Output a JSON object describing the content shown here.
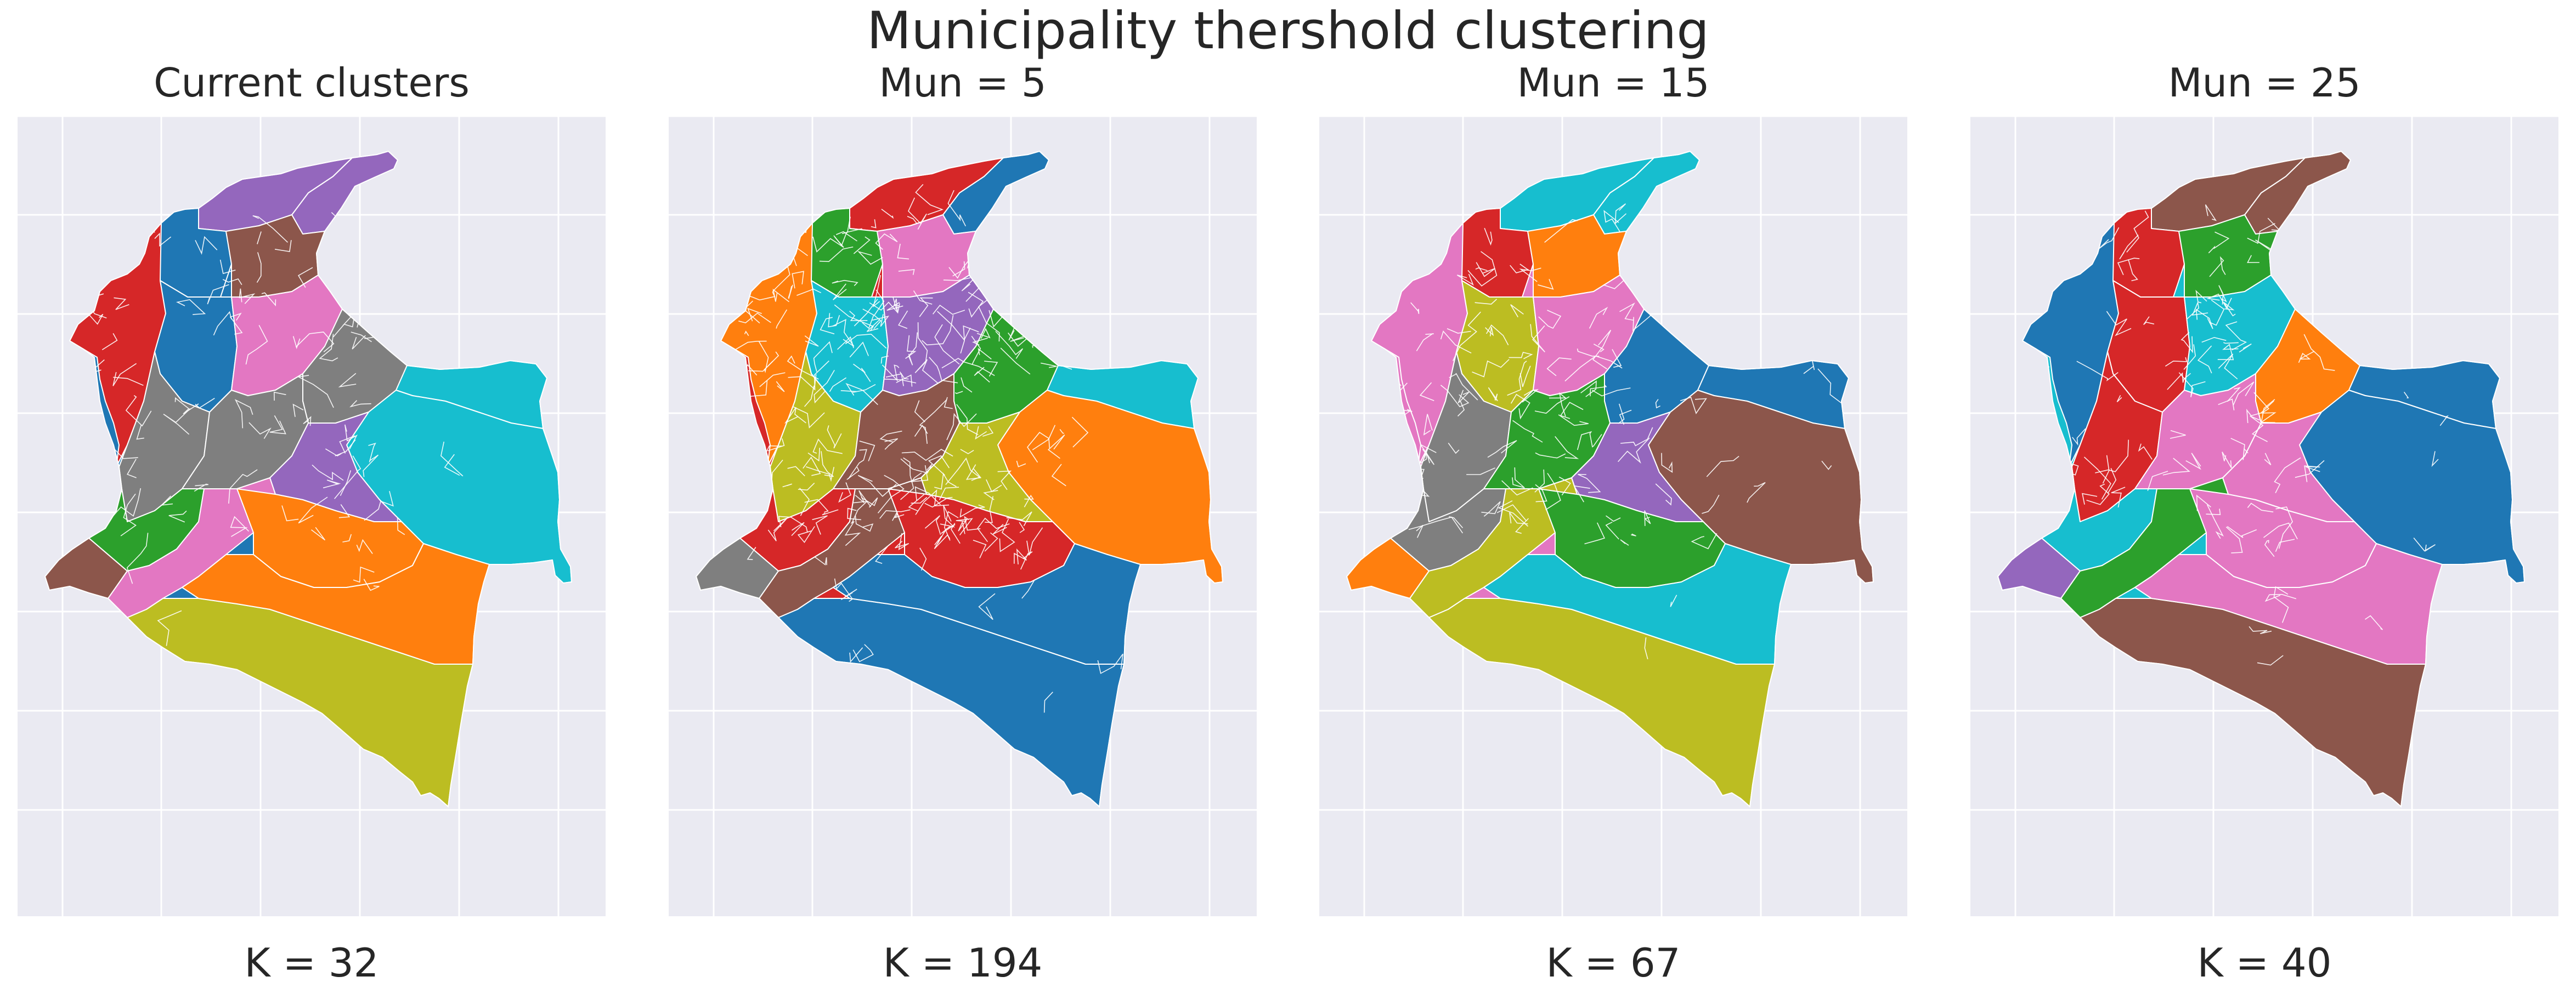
{
  "figure": {
    "suptitle": "Municipality thershold clustering"
  },
  "chart_data": [
    {
      "type": "map",
      "title": "Current clusters",
      "xlabel": "K = 32",
      "grid": true,
      "clusters": 32,
      "palette": [
        "#1f77b4",
        "#ff7f0e",
        "#2ca02c",
        "#d62728",
        "#9467bd",
        "#8c564b",
        "#e377c2",
        "#7f7f7f",
        "#bcbd22",
        "#17becf"
      ]
    },
    {
      "type": "map",
      "title": "Mun = 5",
      "xlabel": "K = 194",
      "grid": true,
      "clusters": 194,
      "palette": [
        "#1f77b4",
        "#ff7f0e",
        "#2ca02c",
        "#d62728",
        "#9467bd",
        "#8c564b",
        "#e377c2",
        "#7f7f7f",
        "#bcbd22",
        "#17becf"
      ]
    },
    {
      "type": "map",
      "title": "Mun = 15",
      "xlabel": "K = 67",
      "grid": true,
      "clusters": 67,
      "palette": [
        "#1f77b4",
        "#ff7f0e",
        "#2ca02c",
        "#d62728",
        "#9467bd",
        "#8c564b",
        "#e377c2",
        "#7f7f7f",
        "#bcbd22",
        "#17becf"
      ]
    },
    {
      "type": "map",
      "title": "Mun = 25",
      "xlabel": "K = 40",
      "grid": true,
      "clusters": 40,
      "palette": [
        "#1f77b4",
        "#ff7f0e",
        "#2ca02c",
        "#d62728",
        "#9467bd",
        "#8c564b",
        "#e377c2",
        "#7f7f7f",
        "#bcbd22",
        "#17becf"
      ]
    }
  ],
  "colors": {
    "axes_background": "#eaeaf2",
    "grid": "#ffffff",
    "text": "#262626",
    "figure_background": "#ffffff"
  }
}
